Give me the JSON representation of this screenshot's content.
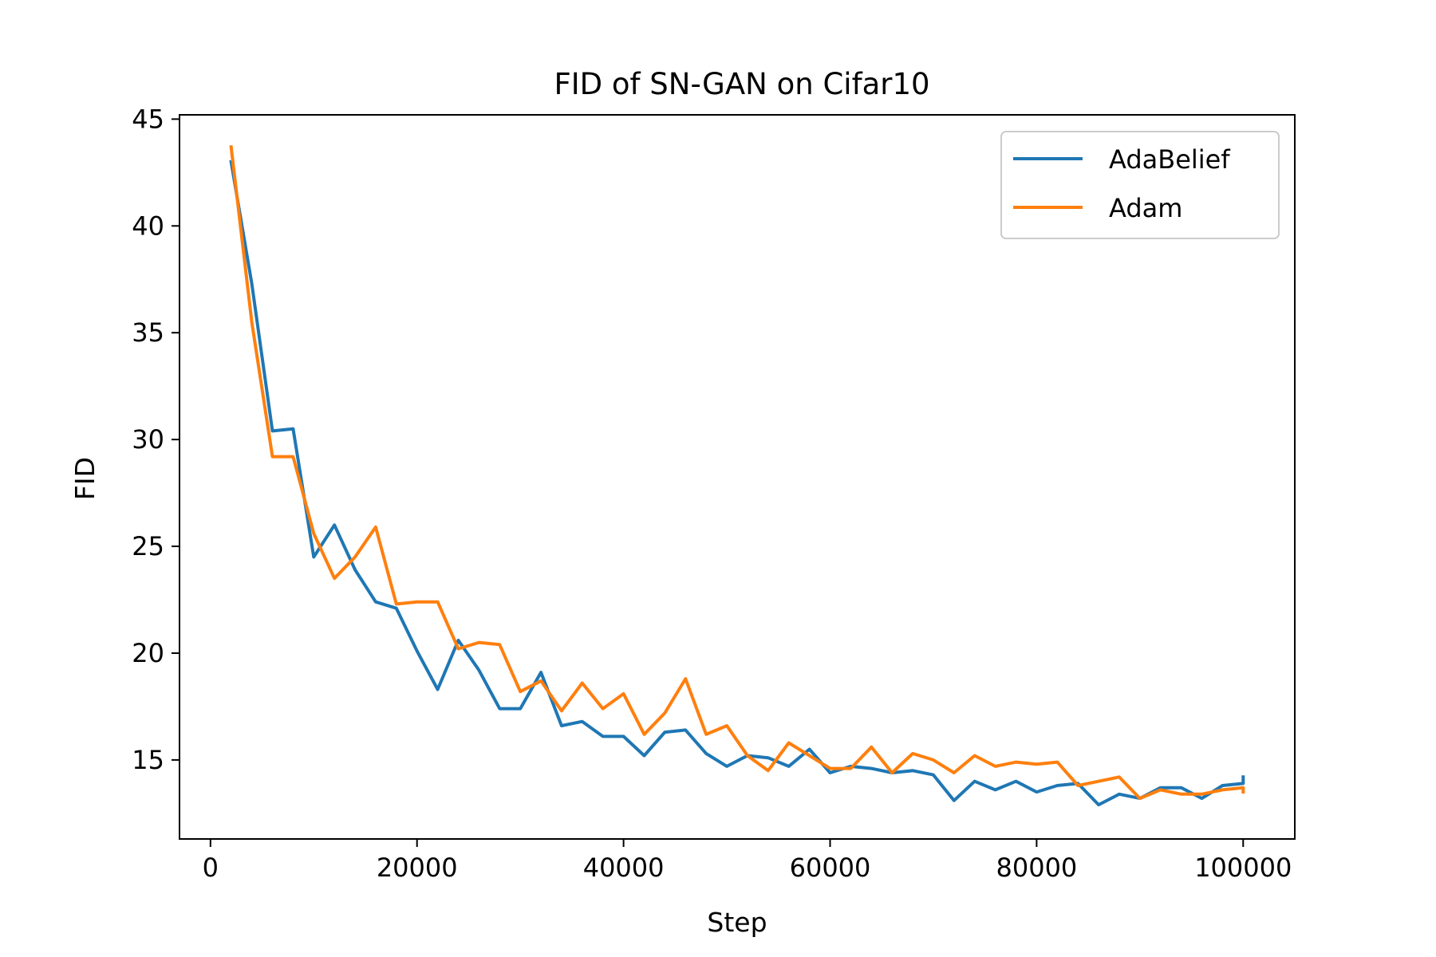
{
  "chart_data": {
    "type": "line",
    "title": "FID of SN-GAN on Cifar10",
    "xlabel": "Step",
    "ylabel": "FID",
    "xlim": [
      -3000,
      105000
    ],
    "ylim": [
      11.3,
      45.2
    ],
    "xticks": [
      0,
      20000,
      40000,
      60000,
      80000,
      100000
    ],
    "xtick_labels": [
      "0",
      "20000",
      "40000",
      "60000",
      "80000",
      "100000"
    ],
    "yticks": [
      15,
      20,
      25,
      30,
      35,
      40,
      45
    ],
    "ytick_labels": [
      "15",
      "20",
      "25",
      "30",
      "35",
      "40",
      "45"
    ],
    "grid": false,
    "legend_position": "top-right",
    "series": [
      {
        "name": "AdaBelief",
        "color": "#1f77b4",
        "x": [
          2000,
          4000,
          6000,
          8000,
          10000,
          12000,
          14000,
          16000,
          18000,
          20000,
          22000,
          24000,
          26000,
          28000,
          30000,
          32000,
          34000,
          36000,
          38000,
          40000,
          42000,
          44000,
          46000,
          48000,
          50000,
          52000,
          54000,
          56000,
          58000,
          60000,
          62000,
          64000,
          66000,
          68000,
          70000,
          72000,
          74000,
          76000,
          78000,
          80000,
          82000,
          84000,
          86000,
          88000,
          90000,
          92000,
          94000,
          96000,
          98000,
          100000,
          100000
        ],
        "y": [
          43.0,
          37.3,
          30.4,
          30.5,
          24.5,
          26.0,
          23.9,
          22.4,
          22.1,
          20.1,
          18.3,
          20.6,
          19.2,
          17.4,
          17.4,
          19.1,
          16.6,
          16.8,
          16.1,
          16.1,
          15.2,
          16.3,
          16.4,
          15.3,
          14.7,
          15.2,
          15.1,
          14.7,
          15.5,
          14.4,
          14.7,
          14.6,
          14.4,
          14.5,
          14.3,
          13.1,
          14.0,
          13.6,
          14.0,
          13.5,
          13.8,
          13.9,
          12.9,
          13.4,
          13.2,
          13.7,
          13.7,
          13.2,
          13.8,
          13.9,
          14.2
        ]
      },
      {
        "name": "Adam",
        "color": "#ff7f0e",
        "x": [
          2000,
          4000,
          6000,
          8000,
          10000,
          12000,
          14000,
          16000,
          18000,
          20000,
          22000,
          24000,
          26000,
          28000,
          30000,
          32000,
          34000,
          36000,
          38000,
          40000,
          42000,
          44000,
          46000,
          48000,
          50000,
          52000,
          54000,
          56000,
          58000,
          60000,
          62000,
          64000,
          66000,
          68000,
          70000,
          72000,
          74000,
          76000,
          78000,
          80000,
          82000,
          84000,
          86000,
          88000,
          90000,
          92000,
          94000,
          96000,
          98000,
          100000,
          100000
        ],
        "y": [
          43.7,
          35.5,
          29.2,
          29.2,
          25.6,
          23.5,
          24.5,
          25.9,
          22.3,
          22.4,
          22.4,
          20.2,
          20.5,
          20.4,
          18.2,
          18.7,
          17.3,
          18.6,
          17.4,
          18.1,
          16.2,
          17.2,
          18.8,
          16.2,
          16.6,
          15.2,
          14.5,
          15.8,
          15.2,
          14.6,
          14.6,
          15.6,
          14.4,
          15.3,
          15.0,
          14.4,
          15.2,
          14.7,
          14.9,
          14.8,
          14.9,
          13.8,
          14.0,
          14.2,
          13.2,
          13.6,
          13.4,
          13.4,
          13.6,
          13.7,
          13.5
        ]
      }
    ]
  }
}
